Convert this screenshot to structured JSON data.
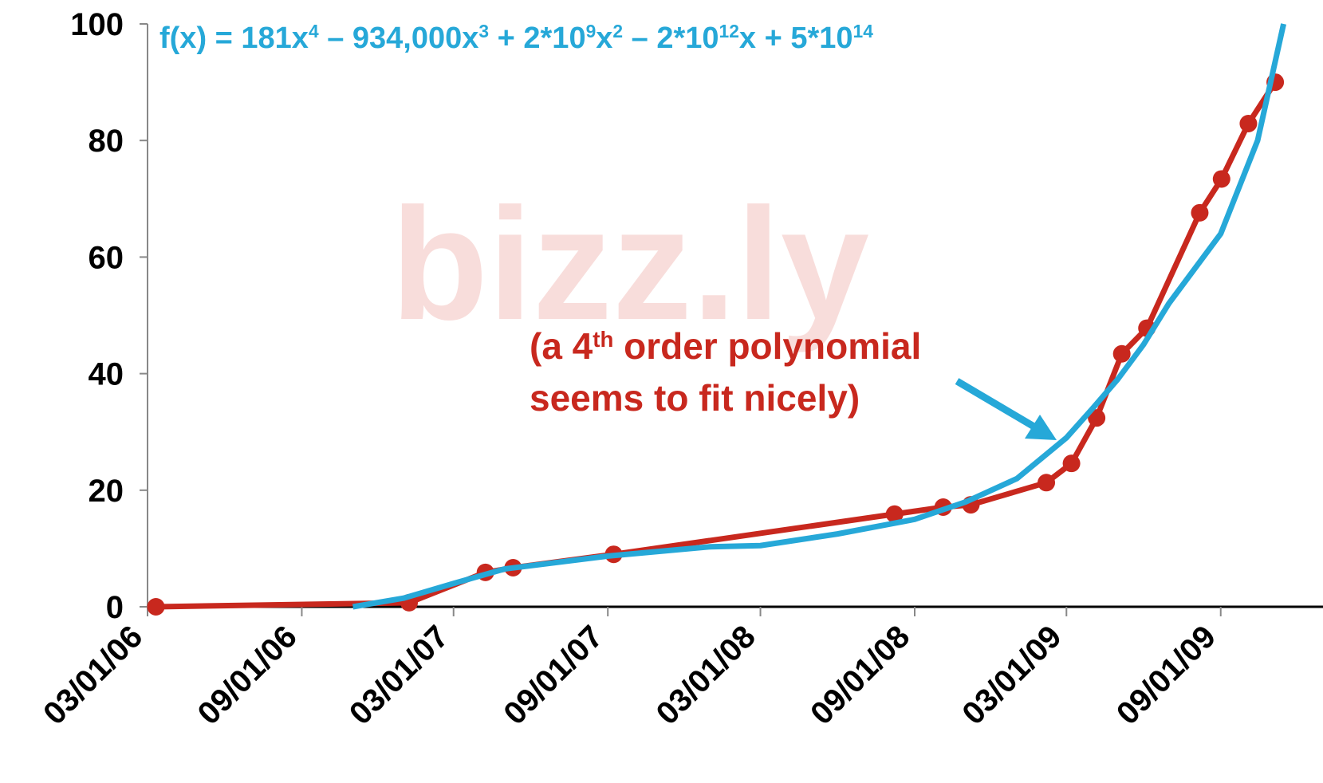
{
  "chart_data": {
    "type": "line",
    "formula_parts": [
      "f(x) = 181x",
      "4",
      " –  934,000x",
      "3",
      " + 2*10",
      "9",
      "x",
      "2",
      "  –  2*10",
      "12",
      "x + 5*10",
      "14"
    ],
    "annotation_line1_parts": [
      "(a 4",
      "th",
      " order polynomial"
    ],
    "annotation_line2": "seems to fit nicely)",
    "watermark": "bizz.ly",
    "xlim": [
      "2006-03-01",
      "2010-01-01"
    ],
    "xticks": [
      {
        "value": "2006-03-01",
        "label": "03/01/06"
      },
      {
        "value": "2006-09-01",
        "label": "09/01/06"
      },
      {
        "value": "2007-03-01",
        "label": "03/01/07"
      },
      {
        "value": "2007-09-01",
        "label": "09/01/07"
      },
      {
        "value": "2008-03-01",
        "label": "03/01/08"
      },
      {
        "value": "2008-09-01",
        "label": "09/01/08"
      },
      {
        "value": "2009-03-01",
        "label": "03/01/09"
      },
      {
        "value": "2009-09-01",
        "label": "09/01/09"
      }
    ],
    "ylim": [
      0,
      100
    ],
    "yticks": [
      0,
      20,
      40,
      60,
      80,
      100
    ],
    "series": [
      {
        "color": "#c8281e",
        "markers": true,
        "x": [
          "2006-03-11",
          "2007-01-07",
          "2007-04-08",
          "2007-05-11",
          "2007-09-08",
          "2008-08-08",
          "2008-10-05",
          "2008-11-07",
          "2009-02-05",
          "2009-03-07",
          "2009-04-06",
          "2009-05-06",
          "2009-06-05",
          "2009-08-07",
          "2009-09-02",
          "2009-10-04",
          "2009-11-05"
        ],
        "values": [
          0,
          0.7,
          5.9,
          6.7,
          9.0,
          15.9,
          17.1,
          17.5,
          21.3,
          24.6,
          32.4,
          43.4,
          47.8,
          67.6,
          73.4,
          82.9,
          90.0
        ]
      },
      {
        "color": "#26a8d8",
        "markers": false,
        "x": [
          "2006-11-01",
          "2007-01-01",
          "2007-03-01",
          "2007-05-01",
          "2007-09-01",
          "2008-01-01",
          "2008-03-01",
          "2008-06-01",
          "2008-09-01",
          "2008-11-01",
          "2009-01-01",
          "2009-03-01",
          "2009-04-01",
          "2009-05-01",
          "2009-06-01",
          "2009-07-01",
          "2009-09-01",
          "2009-10-15",
          "2009-11-15"
        ],
        "values": [
          0,
          1.5,
          4,
          6.5,
          8.7,
          10.3,
          10.5,
          12.5,
          15,
          18,
          22,
          29,
          34,
          39,
          45,
          52,
          64,
          80,
          100
        ]
      }
    ]
  }
}
